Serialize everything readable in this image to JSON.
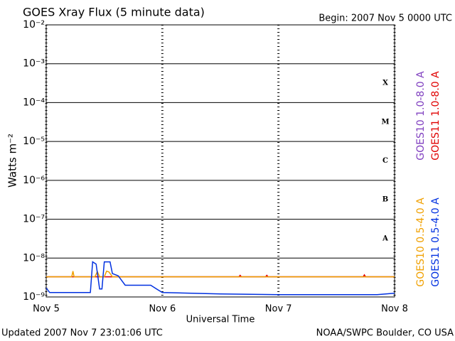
{
  "chart_data": {
    "type": "line",
    "title": "GOES Xray Flux (5 minute data)",
    "subtitle": "Begin:  2007 Nov 5 0000 UTC",
    "xlabel": "Universal Time",
    "ylabel": "Watts m⁻²",
    "footer_left": "Updated 2007 Nov  7 23:01:06 UTC",
    "footer_right": "NOAA/SWPC Boulder, CO USA",
    "log_scale": true,
    "grid": true,
    "xlim": [
      0,
      3
    ],
    "xticks": [
      {
        "value": 0,
        "label": "Nov 5"
      },
      {
        "value": 1,
        "label": "Nov 6"
      },
      {
        "value": 2,
        "label": "Nov 7"
      },
      {
        "value": 3,
        "label": "Nov 8"
      }
    ],
    "ylim": [
      1e-09,
      0.01
    ],
    "yticks": [
      {
        "value": 1e-09,
        "label": "10⁻⁹"
      },
      {
        "value": 1e-08,
        "label": "10⁻⁸"
      },
      {
        "value": 1e-07,
        "label": "10⁻⁷"
      },
      {
        "value": 1e-06,
        "label": "10⁻⁶"
      },
      {
        "value": 1e-05,
        "label": "10⁻⁵"
      },
      {
        "value": 0.0001,
        "label": "10⁻⁴"
      },
      {
        "value": 0.001,
        "label": "10⁻³"
      },
      {
        "value": 0.01,
        "label": "10⁻²"
      }
    ],
    "class_labels": [
      {
        "value": 0.0001,
        "label": "X"
      },
      {
        "value": 1e-05,
        "label": "M"
      },
      {
        "value": 1e-06,
        "label": "C"
      },
      {
        "value": 1e-07,
        "label": "B"
      },
      {
        "value": 1e-08,
        "label": "A"
      }
    ],
    "series": [
      {
        "name": "GOES10 1.0-8.0 A",
        "color": "#8040c0",
        "x": [
          0,
          0.5,
          1,
          1.5,
          2,
          2.5,
          3
        ],
        "values": [
          3.3e-09,
          3.3e-09,
          3.3e-09,
          3.3e-09,
          3.3e-09,
          3.3e-09,
          3.3e-09
        ]
      },
      {
        "name": "GOES11 1.0-8.0 A",
        "color": "#e00000",
        "x": [
          0,
          1.66,
          1.67,
          1.68,
          1.89,
          1.9,
          1.91,
          2.73,
          2.74,
          2.75,
          3
        ],
        "values": [
          3.3e-09,
          3.3e-09,
          3.6e-09,
          3.3e-09,
          3.3e-09,
          3.6e-09,
          3.3e-09,
          3.3e-09,
          3.7e-09,
          3.3e-09,
          3.3e-09
        ]
      },
      {
        "name": "GOES10 0.5-4.0 A",
        "color": "#f0a000",
        "x": [
          0,
          0.22,
          0.23,
          0.24,
          0.42,
          0.44,
          0.46,
          0.5,
          0.52,
          0.54,
          0.57,
          3
        ],
        "values": [
          3.3e-09,
          3.3e-09,
          4.6e-09,
          3.3e-09,
          3.3e-09,
          4.5e-09,
          3.3e-09,
          3.3e-09,
          4.6e-09,
          4.4e-09,
          3.3e-09,
          3.3e-09
        ]
      },
      {
        "name": "GOES11 0.5-4.0 A",
        "color": "#0030e0",
        "x": [
          0,
          0.03,
          0.38,
          0.4,
          0.43,
          0.46,
          0.48,
          0.5,
          0.55,
          0.57,
          0.62,
          0.68,
          0.9,
          0.95,
          1.0,
          1.5,
          2.0,
          2.5,
          2.85,
          3
        ],
        "values": [
          1.7e-09,
          1.3e-09,
          1.3e-09,
          8e-09,
          7e-09,
          1.6e-09,
          1.6e-09,
          8e-09,
          8e-09,
          4e-09,
          3.5e-09,
          2e-09,
          2e-09,
          1.6e-09,
          1.3e-09,
          1.2e-09,
          1.15e-09,
          1.15e-09,
          1.15e-09,
          1.25e-09
        ]
      }
    ]
  }
}
